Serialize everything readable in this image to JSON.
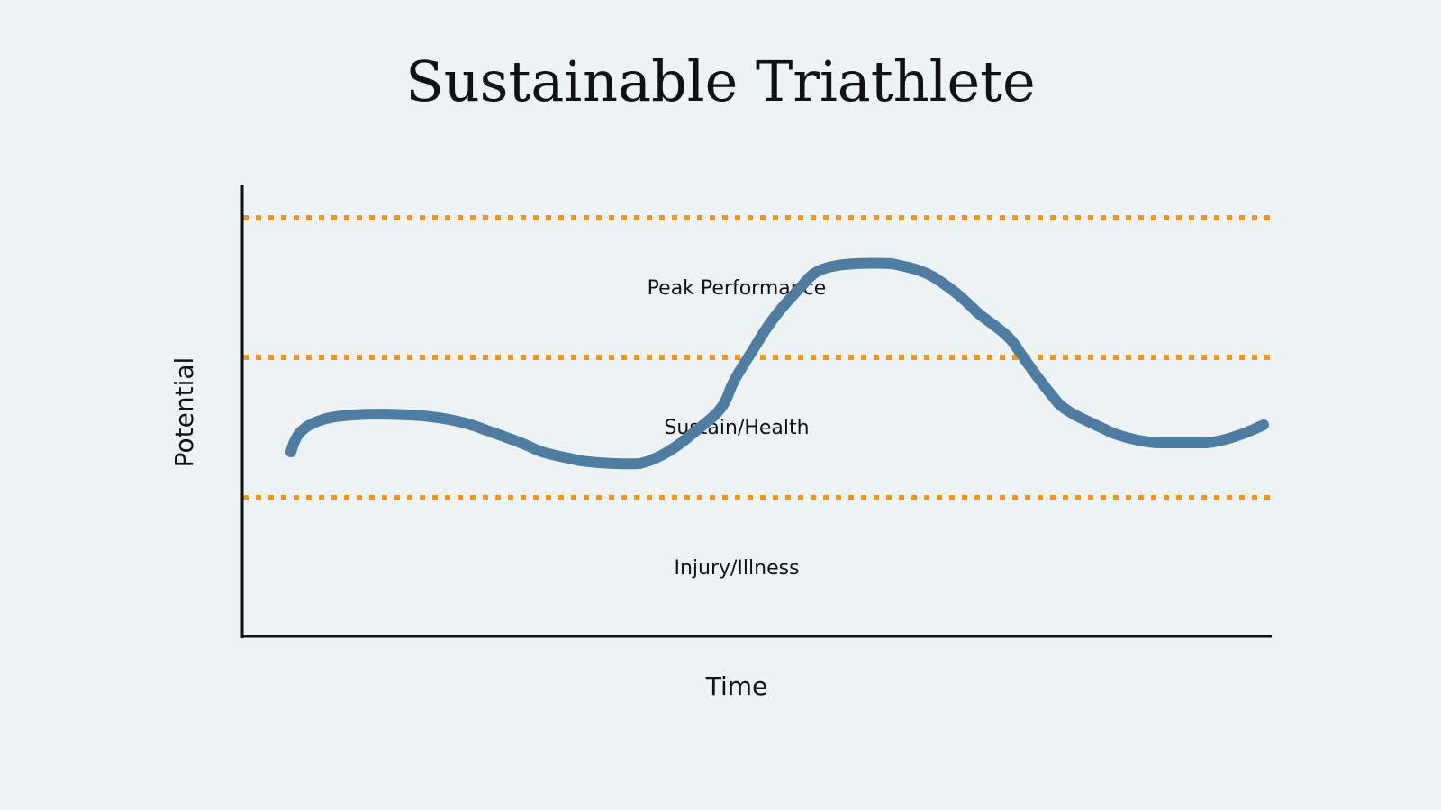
{
  "title": "Sustainable Triathlete",
  "axes": {
    "x_label": "Time",
    "y_label": "Potential"
  },
  "zones": [
    {
      "label": "Peak Performance"
    },
    {
      "label": "Sustain/Health"
    },
    {
      "label": "Injury/Illness"
    }
  ],
  "colors": {
    "background": "#edf2f5",
    "threshold_lines": "#f0951e",
    "curve": "#4f7da1",
    "axes": "#111111",
    "text": "#111111"
  }
}
